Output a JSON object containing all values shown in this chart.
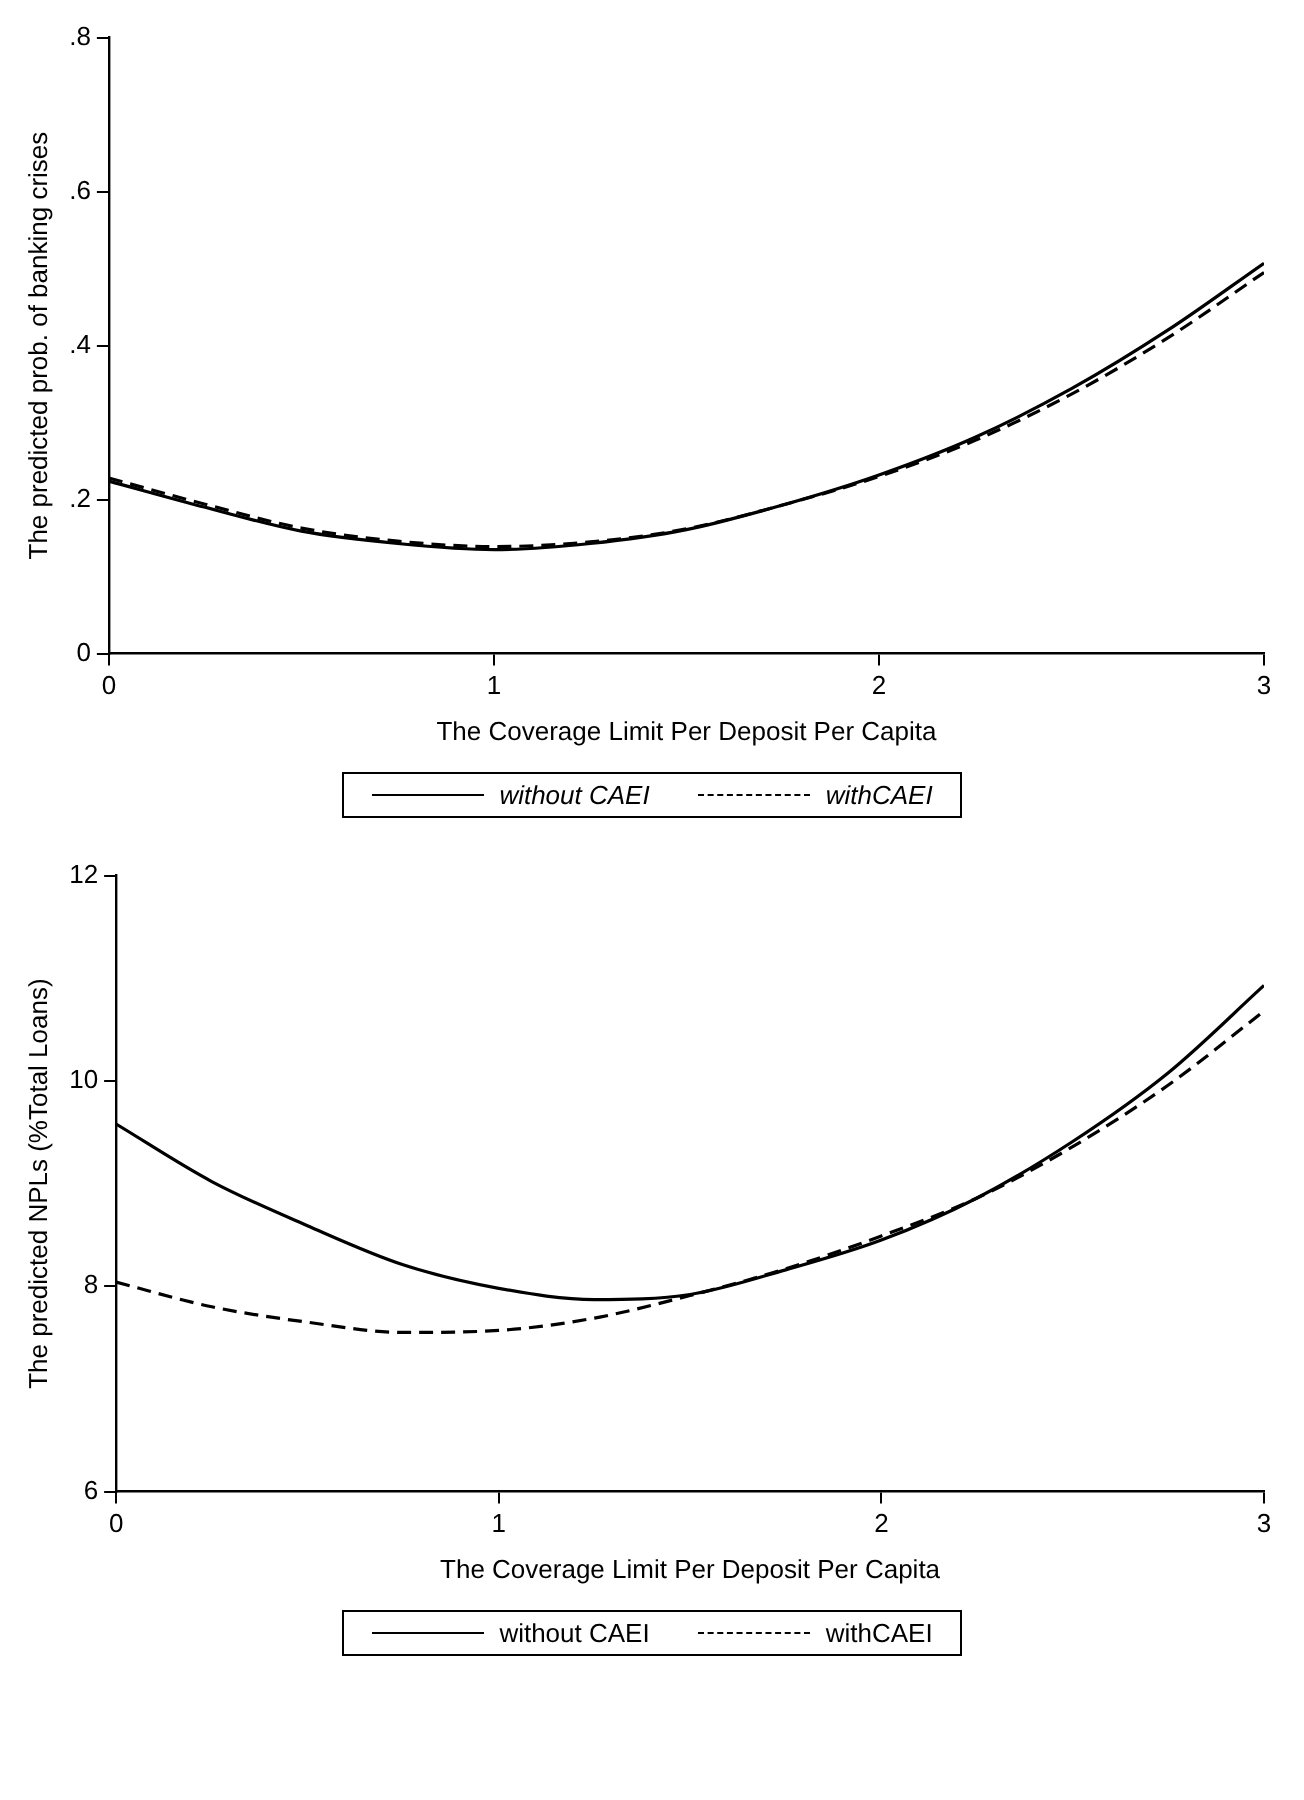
{
  "chart_data": [
    {
      "type": "line",
      "xlabel": "The Coverage Limit Per Deposit Per Capita",
      "ylabel": "The predicted prob. of banking crises",
      "x": [
        0,
        0.25,
        0.5,
        0.75,
        1,
        1.25,
        1.5,
        1.75,
        2,
        2.25,
        2.5,
        2.75,
        3
      ],
      "xlim": [
        0,
        3
      ],
      "xticks": [
        0,
        1,
        2,
        3
      ],
      "ylim": [
        0,
        0.8
      ],
      "yticks": [
        0,
        {
          "value": 0.2,
          "label": ".2"
        },
        {
          "value": 0.4,
          "label": ".4"
        },
        {
          "value": 0.6,
          "label": ".6"
        },
        {
          "value": 0.8,
          "label": ".8"
        }
      ],
      "grid": false,
      "legend": "bottom",
      "marker": "none",
      "series": [
        {
          "name": "without CAEI",
          "color": "#000000",
          "line_style": "solid",
          "values": [
            0.224,
            0.19,
            0.159,
            0.143,
            0.135,
            0.143,
            0.161,
            0.193,
            0.232,
            0.281,
            0.344,
            0.42,
            0.507
          ]
        },
        {
          "name": "withCAEI",
          "color": "#000000",
          "line_style": "dashed",
          "values": [
            0.228,
            0.194,
            0.163,
            0.146,
            0.139,
            0.145,
            0.162,
            0.193,
            0.23,
            0.277,
            0.337,
            0.41,
            0.495
          ]
        }
      ]
    },
    {
      "type": "line",
      "xlabel": "The Coverage Limit Per Deposit Per Capita",
      "ylabel": "The predicted NPLs (%Total Loans)",
      "x": [
        0,
        0.25,
        0.5,
        0.75,
        1,
        1.25,
        1.5,
        1.75,
        2,
        2.25,
        2.5,
        2.75,
        3
      ],
      "xlim": [
        0,
        3
      ],
      "xticks": [
        0,
        1,
        2,
        3
      ],
      "ylim": [
        6,
        12
      ],
      "yticks": [
        6,
        8,
        10,
        12
      ],
      "grid": false,
      "legend": "bottom",
      "marker": "none",
      "series": [
        {
          "name": "without CAEI",
          "color": "#000000",
          "line_style": "solid",
          "values": [
            9.58,
            9.02,
            8.59,
            8.21,
            7.98,
            7.87,
            7.92,
            8.16,
            8.45,
            8.86,
            9.41,
            10.08,
            10.93
          ]
        },
        {
          "name": "withCAEI",
          "color": "#000000",
          "line_style": "dashed",
          "values": [
            8.04,
            7.8,
            7.65,
            7.55,
            7.57,
            7.69,
            7.91,
            8.17,
            8.49,
            8.86,
            9.36,
            9.96,
            10.68
          ]
        }
      ]
    }
  ]
}
